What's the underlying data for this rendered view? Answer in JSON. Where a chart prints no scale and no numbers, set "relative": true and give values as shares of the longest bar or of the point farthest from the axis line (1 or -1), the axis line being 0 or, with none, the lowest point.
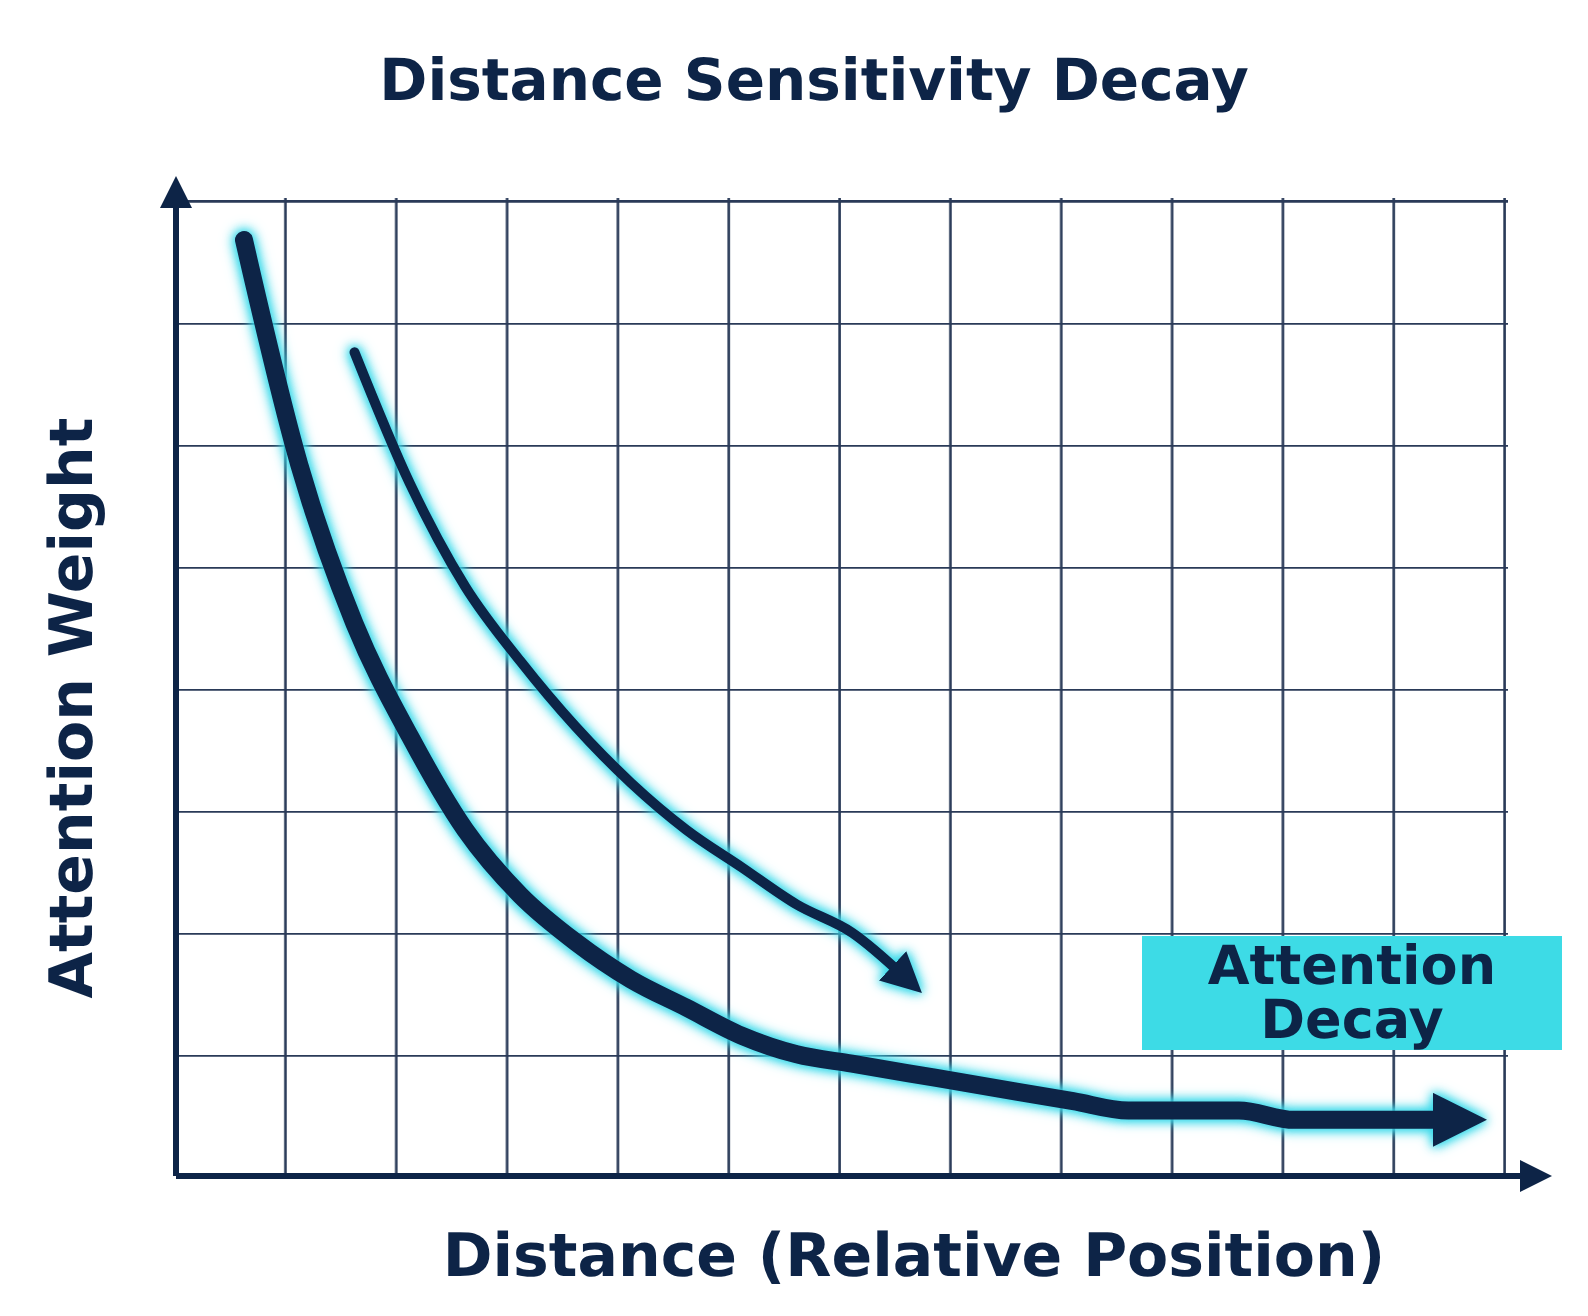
{
  "chart_data": {
    "type": "line",
    "title": "Distance Sensitivity Decay",
    "xlabel": "Distance (Relative Position)",
    "ylabel": "Attention Weight",
    "relative": true,
    "categories": [
      null,
      null,
      null,
      null,
      null,
      null,
      null,
      null,
      null,
      null,
      null,
      null,
      null,
      null,
      null,
      null,
      null,
      null,
      null,
      null,
      null,
      null,
      null
    ],
    "series": [
      {
        "color": "#0d2447",
        "values": [
          1,
          0.76,
          0.59,
          0.47,
          0.37,
          0.3,
          0.25,
          0.21,
          0.18,
          0.15,
          0.13,
          0.12,
          0.11,
          0.1,
          0.09,
          0.08,
          0.07,
          0.07,
          0.07,
          0.06,
          0.06,
          0.06,
          0.06
        ]
      },
      {
        "color": "#0d2447",
        "values": [
          null,
          null,
          0.88,
          0.74,
          0.63,
          0.55,
          0.48,
          0.42,
          0.37,
          0.33,
          0.29,
          0.26,
          0.21,
          null,
          null,
          null,
          null,
          null,
          null,
          null,
          null,
          null,
          null
        ]
      }
    ],
    "annotations": [
      "Attention Decay"
    ]
  }
}
